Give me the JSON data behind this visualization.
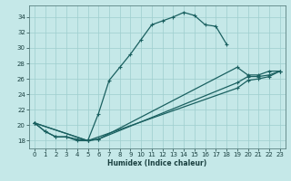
{
  "xlabel": "Humidex (Indice chaleur)",
  "bg_color": "#c5e8e8",
  "grid_color": "#9ecece",
  "line_color": "#1a6060",
  "xlim": [
    -0.5,
    23.5
  ],
  "ylim": [
    17.0,
    35.5
  ],
  "yticks": [
    18,
    20,
    22,
    24,
    26,
    28,
    30,
    32,
    34
  ],
  "xticks": [
    0,
    1,
    2,
    3,
    4,
    5,
    6,
    7,
    8,
    9,
    10,
    11,
    12,
    13,
    14,
    15,
    16,
    17,
    18,
    19,
    20,
    21,
    22,
    23
  ],
  "curve1_x": [
    0,
    1,
    2,
    3,
    4,
    5,
    6,
    7,
    8,
    9,
    10,
    11,
    12,
    13,
    14,
    15,
    16,
    17,
    18
  ],
  "curve1_y": [
    20.3,
    19.2,
    18.5,
    18.5,
    18.0,
    18.0,
    21.5,
    25.8,
    27.5,
    29.2,
    31.1,
    33.0,
    33.5,
    34.0,
    34.6,
    34.2,
    33.0,
    32.8,
    30.5
  ],
  "curve2_x": [
    0,
    1,
    2,
    3,
    4,
    5,
    6,
    19,
    20,
    21,
    22,
    23
  ],
  "curve2_y": [
    20.3,
    19.2,
    18.5,
    18.5,
    18.2,
    18.0,
    18.2,
    27.5,
    26.5,
    26.5,
    27.0,
    27.0
  ],
  "curve3_x": [
    0,
    5,
    6,
    19,
    20,
    21,
    22,
    23
  ],
  "curve3_y": [
    20.3,
    18.0,
    18.2,
    25.5,
    26.3,
    26.3,
    26.5,
    27.0
  ],
  "curve4_x": [
    0,
    5,
    19,
    20,
    21,
    22,
    23
  ],
  "curve4_y": [
    20.3,
    18.0,
    24.8,
    25.8,
    26.0,
    26.3,
    27.0
  ]
}
